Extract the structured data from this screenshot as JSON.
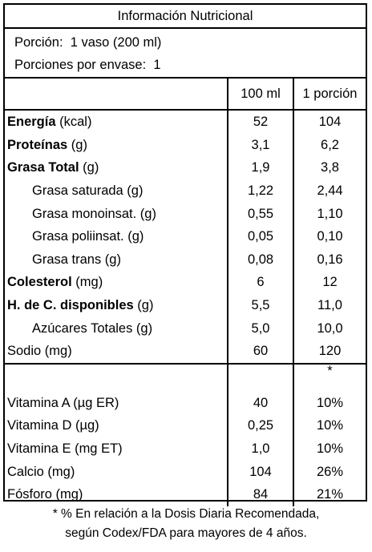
{
  "title": "Información Nutricional",
  "serving": {
    "portion_label": "Porción:",
    "portion_value": "1 vaso (200 ml)",
    "per_pack_label": "Porciones por envase:",
    "per_pack_value": "1"
  },
  "columns": {
    "per100": "100 ml",
    "perportion": "1 porción"
  },
  "nutrients": [
    {
      "bold": "Energía",
      "rest": " (kcal)",
      "v100": "52",
      "vport": "104"
    },
    {
      "bold": "Proteínas",
      "rest": " (g)",
      "v100": "3,1",
      "vport": "6,2"
    },
    {
      "bold": "Grasa Total",
      "rest": " (g)",
      "v100": "1,9",
      "vport": "3,8"
    },
    {
      "bold": "",
      "rest": "Grasa saturada (g)",
      "v100": "1,22",
      "vport": "2,44"
    },
    {
      "bold": "",
      "rest": "Grasa monoinsat. (g)",
      "v100": "0,55",
      "vport": "1,10"
    },
    {
      "bold": "",
      "rest": "Grasa poliinsat. (g)",
      "v100": "0,05",
      "vport": "0,10"
    },
    {
      "bold": "",
      "rest": "Grasa trans (g)",
      "v100": "0,08",
      "vport": "0,16"
    },
    {
      "bold": "Colesterol",
      "rest": " (mg)",
      "v100": "6",
      "vport": "12"
    },
    {
      "bold": "H. de C. disponibles",
      "rest": " (g)",
      "v100": "5,5",
      "vport": "11,0"
    },
    {
      "bold": "",
      "rest": "Azúcares Totales (g)",
      "v100": "5,0",
      "vport": "10,0"
    },
    {
      "bold": "",
      "rest": "Sodio (mg)",
      "v100": "60",
      "vport": "120"
    }
  ],
  "star_marker": "*",
  "vitamins": [
    {
      "label": "Vitamina A (µg ER)",
      "v100": "40",
      "vport": "10%"
    },
    {
      "label": "Vitamina D (µg)",
      "v100": "0,25",
      "vport": "10%"
    },
    {
      "label": "Vitamina E (mg ET)",
      "v100": "1,0",
      "vport": "10%"
    },
    {
      "label": "Calcio (mg)",
      "v100": "104",
      "vport": "26%"
    },
    {
      "label": "Fósforo (mg)",
      "v100": "84",
      "vport": "21%"
    }
  ],
  "footnote": {
    "line1": "* % En relación a la Dosis Diaria Recomendada,",
    "line2": "según Codex/FDA para mayores de 4 años."
  }
}
